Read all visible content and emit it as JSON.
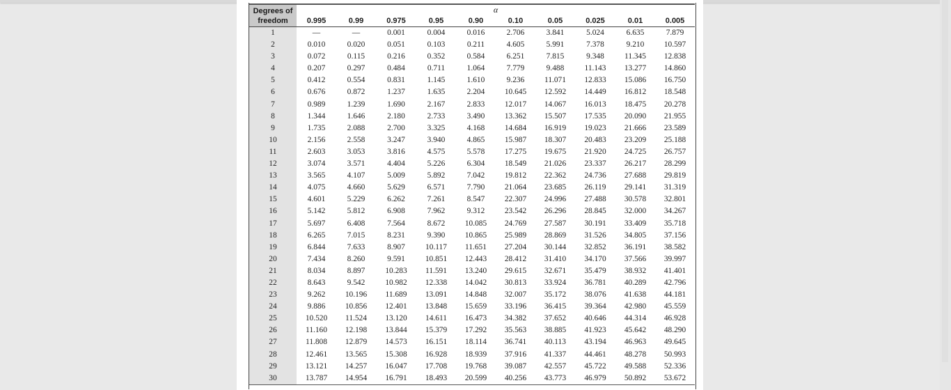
{
  "table": {
    "df_header_line1": "Degrees of",
    "df_header_line2": "freedom",
    "alpha_symbol": "α",
    "alphas": [
      "0.995",
      "0.99",
      "0.975",
      "0.95",
      "0.90",
      "0.10",
      "0.05",
      "0.025",
      "0.01",
      "0.005"
    ],
    "rows": [
      [
        "1",
        "—",
        "—",
        "0.001",
        "0.004",
        "0.016",
        "2.706",
        "3.841",
        "5.024",
        "6.635",
        "7.879"
      ],
      [
        "2",
        "0.010",
        "0.020",
        "0.051",
        "0.103",
        "0.211",
        "4.605",
        "5.991",
        "7.378",
        "9.210",
        "10.597"
      ],
      [
        "3",
        "0.072",
        "0.115",
        "0.216",
        "0.352",
        "0.584",
        "6.251",
        "7.815",
        "9.348",
        "11.345",
        "12.838"
      ],
      [
        "4",
        "0.207",
        "0.297",
        "0.484",
        "0.711",
        "1.064",
        "7.779",
        "9.488",
        "11.143",
        "13.277",
        "14.860"
      ],
      [
        "5",
        "0.412",
        "0.554",
        "0.831",
        "1.145",
        "1.610",
        "9.236",
        "11.071",
        "12.833",
        "15.086",
        "16.750"
      ],
      [
        "6",
        "0.676",
        "0.872",
        "1.237",
        "1.635",
        "2.204",
        "10.645",
        "12.592",
        "14.449",
        "16.812",
        "18.548"
      ],
      [
        "7",
        "0.989",
        "1.239",
        "1.690",
        "2.167",
        "2.833",
        "12.017",
        "14.067",
        "16.013",
        "18.475",
        "20.278"
      ],
      [
        "8",
        "1.344",
        "1.646",
        "2.180",
        "2.733",
        "3.490",
        "13.362",
        "15.507",
        "17.535",
        "20.090",
        "21.955"
      ],
      [
        "9",
        "1.735",
        "2.088",
        "2.700",
        "3.325",
        "4.168",
        "14.684",
        "16.919",
        "19.023",
        "21.666",
        "23.589"
      ],
      [
        "10",
        "2.156",
        "2.558",
        "3.247",
        "3.940",
        "4.865",
        "15.987",
        "18.307",
        "20.483",
        "23.209",
        "25.188"
      ],
      [
        "11",
        "2.603",
        "3.053",
        "3.816",
        "4.575",
        "5.578",
        "17.275",
        "19.675",
        "21.920",
        "24.725",
        "26.757"
      ],
      [
        "12",
        "3.074",
        "3.571",
        "4.404",
        "5.226",
        "6.304",
        "18.549",
        "21.026",
        "23.337",
        "26.217",
        "28.299"
      ],
      [
        "13",
        "3.565",
        "4.107",
        "5.009",
        "5.892",
        "7.042",
        "19.812",
        "22.362",
        "24.736",
        "27.688",
        "29.819"
      ],
      [
        "14",
        "4.075",
        "4.660",
        "5.629",
        "6.571",
        "7.790",
        "21.064",
        "23.685",
        "26.119",
        "29.141",
        "31.319"
      ],
      [
        "15",
        "4.601",
        "5.229",
        "6.262",
        "7.261",
        "8.547",
        "22.307",
        "24.996",
        "27.488",
        "30.578",
        "32.801"
      ],
      [
        "16",
        "5.142",
        "5.812",
        "6.908",
        "7.962",
        "9.312",
        "23.542",
        "26.296",
        "28.845",
        "32.000",
        "34.267"
      ],
      [
        "17",
        "5.697",
        "6.408",
        "7.564",
        "8.672",
        "10.085",
        "24.769",
        "27.587",
        "30.191",
        "33.409",
        "35.718"
      ],
      [
        "18",
        "6.265",
        "7.015",
        "8.231",
        "9.390",
        "10.865",
        "25.989",
        "28.869",
        "31.526",
        "34.805",
        "37.156"
      ],
      [
        "19",
        "6.844",
        "7.633",
        "8.907",
        "10.117",
        "11.651",
        "27.204",
        "30.144",
        "32.852",
        "36.191",
        "38.582"
      ],
      [
        "20",
        "7.434",
        "8.260",
        "9.591",
        "10.851",
        "12.443",
        "28.412",
        "31.410",
        "34.170",
        "37.566",
        "39.997"
      ],
      [
        "21",
        "8.034",
        "8.897",
        "10.283",
        "11.591",
        "13.240",
        "29.615",
        "32.671",
        "35.479",
        "38.932",
        "41.401"
      ],
      [
        "22",
        "8.643",
        "9.542",
        "10.982",
        "12.338",
        "14.042",
        "30.813",
        "33.924",
        "36.781",
        "40.289",
        "42.796"
      ],
      [
        "23",
        "9.262",
        "10.196",
        "11.689",
        "13.091",
        "14.848",
        "32.007",
        "35.172",
        "38.076",
        "41.638",
        "44.181"
      ],
      [
        "24",
        "9.886",
        "10.856",
        "12.401",
        "13.848",
        "15.659",
        "33.196",
        "36.415",
        "39.364",
        "42.980",
        "45.559"
      ],
      [
        "25",
        "10.520",
        "11.524",
        "13.120",
        "14.611",
        "16.473",
        "34.382",
        "37.652",
        "40.646",
        "44.314",
        "46.928"
      ],
      [
        "26",
        "11.160",
        "12.198",
        "13.844",
        "15.379",
        "17.292",
        "35.563",
        "38.885",
        "41.923",
        "45.642",
        "48.290"
      ],
      [
        "27",
        "11.808",
        "12.879",
        "14.573",
        "16.151",
        "18.114",
        "36.741",
        "40.113",
        "43.194",
        "46.963",
        "49.645"
      ],
      [
        "28",
        "12.461",
        "13.565",
        "15.308",
        "16.928",
        "18.939",
        "37.916",
        "41.337",
        "44.461",
        "48.278",
        "50.993"
      ],
      [
        "29",
        "13.121",
        "14.257",
        "16.047",
        "17.708",
        "19.768",
        "39.087",
        "42.557",
        "45.722",
        "49.588",
        "52.336"
      ],
      [
        "30",
        "13.787",
        "14.954",
        "16.791",
        "18.493",
        "20.599",
        "40.256",
        "43.773",
        "46.979",
        "50.892",
        "53.672"
      ]
    ]
  }
}
